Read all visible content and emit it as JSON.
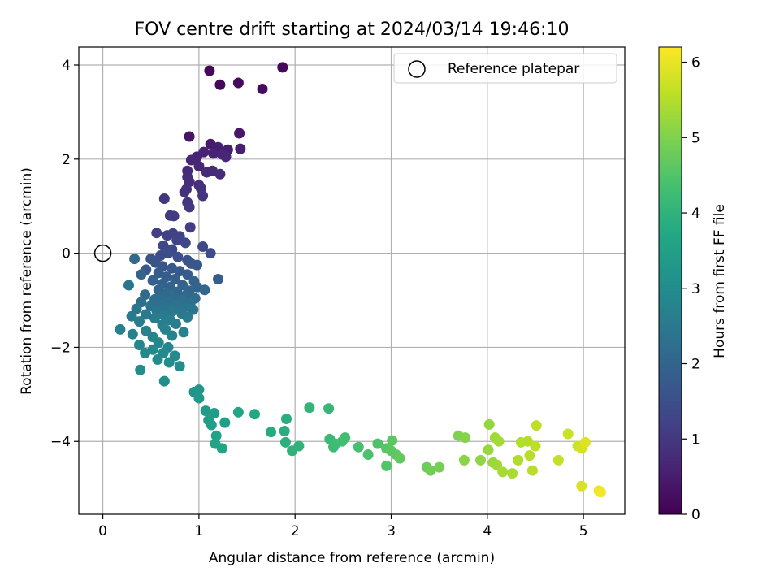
{
  "chart_data": {
    "type": "scatter",
    "title": "FOV centre drift starting at 2024/03/14 19:46:10",
    "xlabel": "Angular distance from reference (arcmin)",
    "ylabel": "Rotation from reference (arcmin)",
    "xlim": [
      -0.25,
      5.43
    ],
    "ylim": [
      -5.55,
      4.38
    ],
    "xticks": [
      0,
      1,
      2,
      3,
      4,
      5
    ],
    "yticks": [
      -4,
      -2,
      0,
      2,
      4
    ],
    "xtick_labels": [
      "0",
      "1",
      "2",
      "3",
      "4",
      "5"
    ],
    "ytick_labels": [
      "−4",
      "−2",
      "0",
      "2",
      "4"
    ],
    "grid": true,
    "legend": {
      "placement": "upper right",
      "entries": [
        "Reference platepar"
      ]
    },
    "reference_point": {
      "x": 0,
      "y": 0,
      "label": "Reference platepar"
    },
    "colorbar": {
      "label": "Hours from first FF file",
      "colormap": "viridis",
      "range": [
        0,
        6.2
      ],
      "ticks": [
        0,
        1,
        2,
        3,
        4,
        5,
        6
      ],
      "tick_labels": [
        "0",
        "1",
        "2",
        "3",
        "4",
        "5",
        "6"
      ]
    },
    "points": [
      [
        1.11,
        3.88,
        0.1
      ],
      [
        1.87,
        3.95,
        0.12
      ],
      [
        1.22,
        3.58,
        0.15
      ],
      [
        1.41,
        3.62,
        0.18
      ],
      [
        1.66,
        3.49,
        0.22
      ],
      [
        0.9,
        2.48,
        0.35
      ],
      [
        1.42,
        2.55,
        0.4
      ],
      [
        1.12,
        2.32,
        0.45
      ],
      [
        1.2,
        2.25,
        0.5
      ],
      [
        1.3,
        2.2,
        0.52
      ],
      [
        1.43,
        2.22,
        0.55
      ],
      [
        1.05,
        2.15,
        0.58
      ],
      [
        1.15,
        2.12,
        0.6
      ],
      [
        0.98,
        2.05,
        0.62
      ],
      [
        1.24,
        2.1,
        0.64
      ],
      [
        0.92,
        1.98,
        0.66
      ],
      [
        1.28,
        2.05,
        0.68
      ],
      [
        1.0,
        1.85,
        0.7
      ],
      [
        0.88,
        1.75,
        0.72
      ],
      [
        1.08,
        1.72,
        0.74
      ],
      [
        1.14,
        1.75,
        0.76
      ],
      [
        1.22,
        1.68,
        0.78
      ],
      [
        0.88,
        1.62,
        0.8
      ],
      [
        0.9,
        1.52,
        0.82
      ],
      [
        1.0,
        1.45,
        0.84
      ],
      [
        0.87,
        1.36,
        0.86
      ],
      [
        0.85,
        1.3,
        0.88
      ],
      [
        1.02,
        1.38,
        0.9
      ],
      [
        1.04,
        1.22,
        0.92
      ],
      [
        0.64,
        1.16,
        0.95
      ],
      [
        0.88,
        1.08,
        0.98
      ],
      [
        0.9,
        0.98,
        1.0
      ],
      [
        0.7,
        0.8,
        1.05
      ],
      [
        0.74,
        0.79,
        1.08
      ],
      [
        0.91,
        0.55,
        1.1
      ],
      [
        0.56,
        0.43,
        1.15
      ],
      [
        0.73,
        0.42,
        1.18
      ],
      [
        0.67,
        0.38,
        1.2
      ],
      [
        0.8,
        0.36,
        1.22
      ],
      [
        0.77,
        0.28,
        1.25
      ],
      [
        0.86,
        0.22,
        1.28
      ],
      [
        0.63,
        0.16,
        1.3
      ],
      [
        1.04,
        0.14,
        1.35
      ],
      [
        0.72,
        0.08,
        1.38
      ],
      [
        1.12,
        0.0,
        1.42
      ],
      [
        0.6,
        -0.05,
        1.45
      ],
      [
        0.68,
        0.0,
        1.48
      ],
      [
        0.78,
        -0.08,
        1.5
      ],
      [
        0.5,
        -0.12,
        1.55
      ],
      [
        0.88,
        -0.15,
        1.58
      ],
      [
        0.55,
        -0.2,
        1.6
      ],
      [
        0.92,
        -0.22,
        1.62
      ],
      [
        0.62,
        -0.28,
        1.65
      ],
      [
        0.98,
        -0.25,
        1.68
      ],
      [
        0.72,
        -0.32,
        1.7
      ],
      [
        0.45,
        -0.35,
        1.72
      ],
      [
        0.8,
        -0.38,
        1.75
      ],
      [
        0.58,
        -0.42,
        1.78
      ],
      [
        0.88,
        -0.45,
        1.8
      ],
      [
        0.66,
        -0.5,
        1.82
      ],
      [
        1.2,
        -0.55,
        1.84
      ],
      [
        0.75,
        -0.55,
        1.86
      ],
      [
        0.52,
        -0.58,
        1.88
      ],
      [
        0.95,
        -0.6,
        1.9
      ],
      [
        0.62,
        -0.65,
        1.92
      ],
      [
        0.83,
        -0.68,
        1.94
      ],
      [
        0.7,
        -0.72,
        1.96
      ],
      [
        0.98,
        -0.72,
        1.98
      ],
      [
        1.06,
        -0.78,
        2.0
      ],
      [
        0.58,
        -0.78,
        2.02
      ],
      [
        0.9,
        -0.8,
        2.04
      ],
      [
        0.77,
        -0.82,
        2.06
      ],
      [
        0.66,
        -0.86,
        2.08
      ],
      [
        0.44,
        -0.88,
        2.1
      ],
      [
        0.86,
        -0.9,
        2.12
      ],
      [
        0.6,
        -0.92,
        2.14
      ],
      [
        0.74,
        -0.95,
        2.16
      ],
      [
        0.96,
        -0.96,
        2.18
      ],
      [
        0.54,
        -0.98,
        2.2
      ],
      [
        0.82,
        -1.0,
        2.22
      ],
      [
        0.68,
        -1.02,
        2.24
      ],
      [
        0.4,
        -1.04,
        2.26
      ],
      [
        0.91,
        -1.06,
        2.28
      ],
      [
        0.6,
        -1.08,
        2.3
      ],
      [
        0.76,
        -1.1,
        2.32
      ],
      [
        0.5,
        -1.12,
        2.34
      ],
      [
        0.86,
        -1.14,
        2.36
      ],
      [
        0.65,
        -1.16,
        2.38
      ],
      [
        0.35,
        -1.18,
        2.4
      ],
      [
        0.94,
        -1.2,
        2.42
      ],
      [
        0.56,
        -1.22,
        2.44
      ],
      [
        0.72,
        -1.24,
        2.46
      ],
      [
        0.82,
        -1.28,
        2.48
      ],
      [
        0.45,
        -1.3,
        2.5
      ],
      [
        0.64,
        -1.32,
        2.52
      ],
      [
        0.3,
        -1.34,
        2.54
      ],
      [
        0.88,
        -1.36,
        2.56
      ],
      [
        0.54,
        -1.38,
        2.58
      ],
      [
        0.7,
        -1.42,
        2.6
      ],
      [
        0.38,
        -1.45,
        2.62
      ],
      [
        0.76,
        -1.5,
        2.64
      ],
      [
        0.62,
        -1.52,
        2.66
      ],
      [
        0.18,
        -1.62,
        2.68
      ],
      [
        0.31,
        -1.72,
        2.7
      ],
      [
        0.45,
        -1.65,
        2.72
      ],
      [
        0.84,
        -1.68,
        2.74
      ],
      [
        0.65,
        -1.62,
        2.76
      ],
      [
        0.52,
        -1.78,
        2.78
      ],
      [
        0.72,
        -1.75,
        2.8
      ],
      [
        0.38,
        -1.95,
        2.82
      ],
      [
        0.58,
        -1.9,
        2.84
      ],
      [
        0.68,
        -2.0,
        2.86
      ],
      [
        0.52,
        -2.05,
        2.88
      ],
      [
        0.44,
        -2.12,
        2.9
      ],
      [
        0.63,
        -2.12,
        2.92
      ],
      [
        0.75,
        -2.18,
        2.94
      ],
      [
        0.57,
        -2.26,
        2.96
      ],
      [
        0.69,
        -2.32,
        2.98
      ],
      [
        0.8,
        -2.4,
        3.0
      ],
      [
        0.39,
        -2.48,
        3.02
      ],
      [
        0.64,
        -2.72,
        3.05
      ],
      [
        0.27,
        -0.68,
        2.4
      ],
      [
        0.33,
        -0.12,
        2.1
      ],
      [
        0.4,
        -0.45,
        1.98
      ],
      [
        0.95,
        -2.95,
        3.2
      ],
      [
        1.0,
        -2.9,
        3.25
      ],
      [
        1.0,
        -3.08,
        3.3
      ],
      [
        1.07,
        -3.35,
        3.35
      ],
      [
        1.16,
        -3.4,
        3.4
      ],
      [
        1.1,
        -3.55,
        3.45
      ],
      [
        1.13,
        -3.65,
        3.48
      ],
      [
        1.27,
        -3.6,
        3.5
      ],
      [
        1.18,
        -3.88,
        3.55
      ],
      [
        1.17,
        -4.05,
        3.58
      ],
      [
        1.24,
        -4.15,
        3.6
      ],
      [
        1.41,
        -3.38,
        3.65
      ],
      [
        1.58,
        -3.42,
        3.7
      ],
      [
        1.75,
        -3.8,
        3.8
      ],
      [
        1.89,
        -3.78,
        3.85
      ],
      [
        1.91,
        -3.52,
        3.88
      ],
      [
        1.9,
        -4.02,
        3.9
      ],
      [
        1.97,
        -4.2,
        3.95
      ],
      [
        2.04,
        -4.1,
        4.0
      ],
      [
        2.15,
        -3.28,
        4.05
      ],
      [
        2.35,
        -3.3,
        4.1
      ],
      [
        2.36,
        -3.95,
        4.15
      ],
      [
        2.4,
        -4.12,
        4.2
      ],
      [
        2.42,
        -4.05,
        4.25
      ],
      [
        2.49,
        -4.0,
        4.3
      ],
      [
        2.52,
        -3.92,
        4.32
      ],
      [
        2.66,
        -4.12,
        4.35
      ],
      [
        2.76,
        -4.28,
        4.4
      ],
      [
        2.86,
        -4.05,
        4.45
      ],
      [
        2.95,
        -4.52,
        4.5
      ],
      [
        2.95,
        -4.15,
        4.55
      ],
      [
        3.0,
        -4.2,
        4.6
      ],
      [
        3.01,
        -3.98,
        4.62
      ],
      [
        3.05,
        -4.28,
        4.65
      ],
      [
        3.09,
        -4.36,
        4.7
      ],
      [
        3.37,
        -4.55,
        4.8
      ],
      [
        3.41,
        -4.62,
        4.85
      ],
      [
        3.5,
        -4.55,
        4.9
      ],
      [
        3.7,
        -3.88,
        5.0
      ],
      [
        3.77,
        -3.92,
        5.05
      ],
      [
        3.76,
        -4.4,
        5.1
      ],
      [
        3.93,
        -4.4,
        5.15
      ],
      [
        4.02,
        -3.64,
        5.2
      ],
      [
        4.01,
        -4.18,
        5.22
      ],
      [
        4.06,
        -4.45,
        5.25
      ],
      [
        4.1,
        -4.5,
        5.3
      ],
      [
        4.08,
        -3.92,
        5.32
      ],
      [
        4.12,
        -4.0,
        5.35
      ],
      [
        4.16,
        -4.65,
        5.38
      ],
      [
        4.26,
        -4.68,
        5.4
      ],
      [
        4.32,
        -4.4,
        5.45
      ],
      [
        4.35,
        -4.02,
        5.48
      ],
      [
        4.42,
        -4.0,
        5.5
      ],
      [
        4.44,
        -4.3,
        5.52
      ],
      [
        4.47,
        -4.62,
        5.55
      ],
      [
        4.5,
        -4.1,
        5.58
      ],
      [
        4.51,
        -3.66,
        5.6
      ],
      [
        4.74,
        -4.4,
        5.65
      ],
      [
        4.84,
        -3.84,
        5.7
      ],
      [
        4.94,
        -4.1,
        5.75
      ],
      [
        4.98,
        -4.15,
        5.8
      ],
      [
        4.98,
        -4.95,
        5.85
      ],
      [
        5.02,
        -4.02,
        5.9
      ],
      [
        5.16,
        -5.05,
        6.05
      ],
      [
        5.18,
        -5.08,
        6.1
      ]
    ]
  }
}
